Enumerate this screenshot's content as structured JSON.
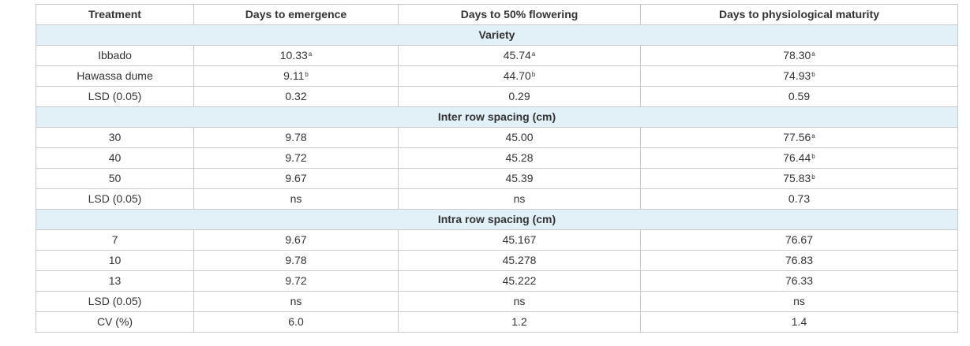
{
  "headers": [
    "Treatment",
    "Days to emergence",
    "Days to 50% flowering",
    "Days to physiological maturity"
  ],
  "colors": {
    "section_bg": "#e2f0f7",
    "border": "#c9c9c9",
    "text": "#333333"
  },
  "rows": [
    {
      "type": "section",
      "label": "Variety"
    },
    {
      "type": "data",
      "cells": [
        {
          "v": "Ibbado"
        },
        {
          "v": "10.33",
          "s": "a"
        },
        {
          "v": "45.74",
          "s": "a"
        },
        {
          "v": "78.30",
          "s": "a"
        }
      ]
    },
    {
      "type": "data",
      "cells": [
        {
          "v": "Hawassa dume"
        },
        {
          "v": "9.11",
          "s": "b"
        },
        {
          "v": "44.70",
          "s": "b"
        },
        {
          "v": "74.93",
          "s": "b"
        }
      ]
    },
    {
      "type": "data",
      "cells": [
        {
          "v": "LSD (0.05)"
        },
        {
          "v": "0.32"
        },
        {
          "v": "0.29"
        },
        {
          "v": "0.59"
        }
      ]
    },
    {
      "type": "section",
      "label": "Inter row spacing (cm)"
    },
    {
      "type": "data",
      "cells": [
        {
          "v": "30"
        },
        {
          "v": "9.78"
        },
        {
          "v": "45.00"
        },
        {
          "v": "77.56",
          "s": "a"
        }
      ]
    },
    {
      "type": "data",
      "cells": [
        {
          "v": "40"
        },
        {
          "v": "9.72"
        },
        {
          "v": "45.28"
        },
        {
          "v": "76.44",
          "s": "b"
        }
      ]
    },
    {
      "type": "data",
      "cells": [
        {
          "v": "50"
        },
        {
          "v": "9.67"
        },
        {
          "v": "45.39"
        },
        {
          "v": "75.83",
          "s": "b"
        }
      ]
    },
    {
      "type": "data",
      "cells": [
        {
          "v": "LSD (0.05)"
        },
        {
          "v": "ns"
        },
        {
          "v": "ns"
        },
        {
          "v": "0.73"
        }
      ]
    },
    {
      "type": "section",
      "label": "Intra row spacing (cm)"
    },
    {
      "type": "data",
      "cells": [
        {
          "v": "7"
        },
        {
          "v": "9.67"
        },
        {
          "v": "45.167"
        },
        {
          "v": "76.67"
        }
      ]
    },
    {
      "type": "data",
      "cells": [
        {
          "v": "10"
        },
        {
          "v": "9.78"
        },
        {
          "v": "45.278"
        },
        {
          "v": "76.83"
        }
      ]
    },
    {
      "type": "data",
      "cells": [
        {
          "v": "13"
        },
        {
          "v": "9.72"
        },
        {
          "v": "45.222"
        },
        {
          "v": "76.33"
        }
      ]
    },
    {
      "type": "data",
      "cells": [
        {
          "v": "LSD (0.05)"
        },
        {
          "v": "ns"
        },
        {
          "v": "ns"
        },
        {
          "v": "ns"
        }
      ]
    },
    {
      "type": "data",
      "cells": [
        {
          "v": "CV (%)"
        },
        {
          "v": "6.0"
        },
        {
          "v": "1.2"
        },
        {
          "v": "1.4"
        }
      ]
    }
  ]
}
